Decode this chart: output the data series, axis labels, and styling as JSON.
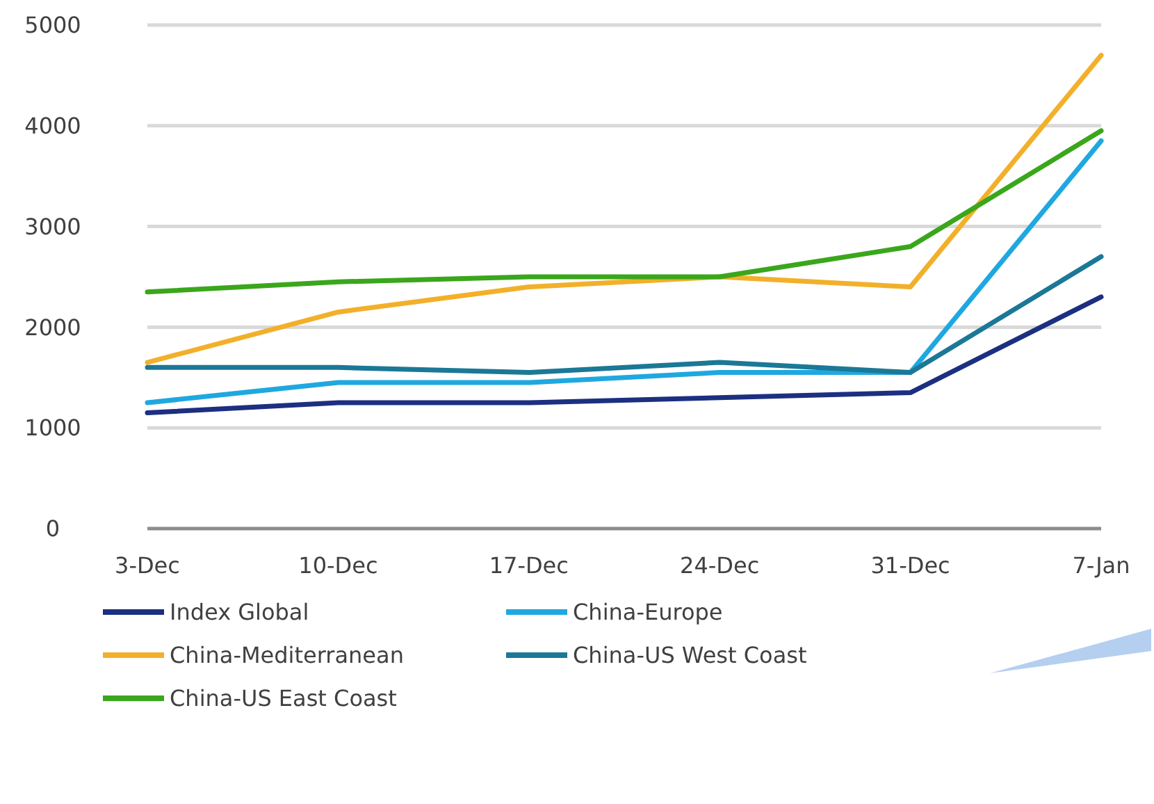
{
  "chart_data": {
    "type": "line",
    "categories": [
      "3-Dec",
      "10-Dec",
      "17-Dec",
      "24-Dec",
      "31-Dec",
      "7-Jan"
    ],
    "series": [
      {
        "name": "Index Global",
        "color": "#1c2f80",
        "values": [
          1150,
          1250,
          1250,
          1300,
          1350,
          2300
        ]
      },
      {
        "name": "China-Europe",
        "color": "#1fa8e0",
        "values": [
          1250,
          1450,
          1450,
          1550,
          1550,
          3850
        ]
      },
      {
        "name": "China-Mediterranean",
        "color": "#f2b02a",
        "values": [
          1650,
          2150,
          2400,
          2500,
          2400,
          4700
        ]
      },
      {
        "name": "China-US West Coast",
        "color": "#1b7896",
        "values": [
          1600,
          1600,
          1550,
          1650,
          1550,
          2700
        ]
      },
      {
        "name": "China-US East Coast",
        "color": "#3aa61c",
        "values": [
          2350,
          2450,
          2500,
          2500,
          2800,
          3950
        ]
      }
    ],
    "ylim": [
      0,
      5000
    ],
    "yticks": [
      0,
      1000,
      2000,
      3000,
      4000,
      5000
    ],
    "grid": "y",
    "legend": "bottom",
    "marker": "none",
    "line_style": "solid"
  }
}
